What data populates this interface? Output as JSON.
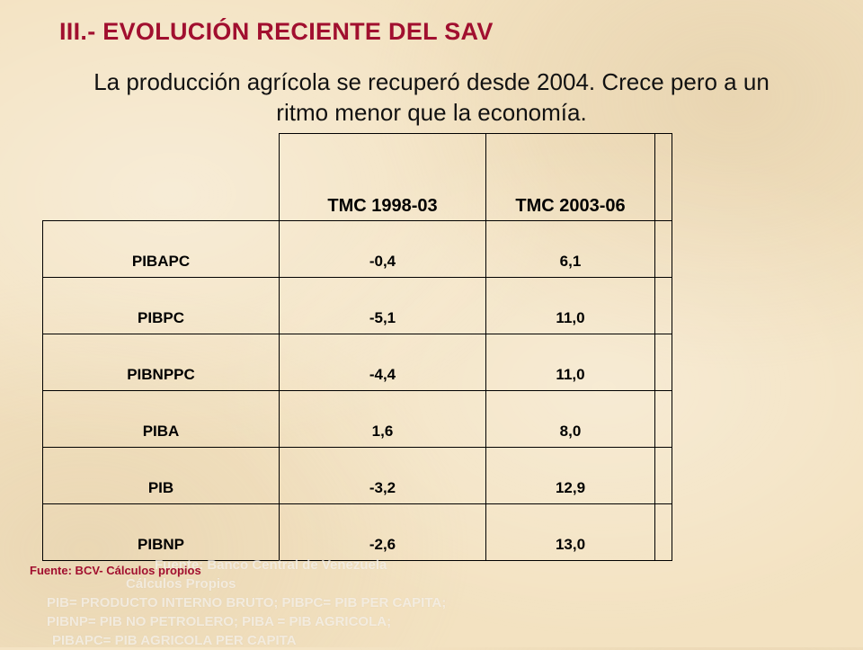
{
  "title": "III.- EVOLUCIÓN RECIENTE DEL SAV",
  "subtitle_line1": "La producción agrícola se recuperó desde 2004. Crece  pero a un",
  "subtitle_line2": "ritmo menor que la economía.",
  "table": {
    "headers": [
      "",
      "TMC 1998-03",
      "TMC 2003-06",
      ""
    ],
    "rows": [
      {
        "label": "PIBAPC",
        "v1": "-0,4",
        "v2": "6,1"
      },
      {
        "label": "PIBPC",
        "v1": "-5,1",
        "v2": "11,0"
      },
      {
        "label": "PIBNPPC",
        "v1": "-4,4",
        "v2": "11,0"
      },
      {
        "label": "PIBA",
        "v1": "1,6",
        "v2": "8,0"
      },
      {
        "label": "PIB",
        "v1": "-3,2",
        "v2": "12,9"
      },
      {
        "label": "PIBNP",
        "v1": "-2,6",
        "v2": "13,0"
      }
    ]
  },
  "source": "Fuente: BCV- Cálculos propios",
  "ghost_lines": [
    "Fuente: Banco Central de Venezuela",
    "Cálculos Propios",
    "PIB= PRODUCTO INTERNO BRUTO; PIBPC= PIB PER CAPITA;",
    "PIBNP= PIB NO PETROLERO; PIBA = PIB AGRICOLA;",
    "PIBAPC= PIB AGRICOLA PER CAPITA"
  ]
}
